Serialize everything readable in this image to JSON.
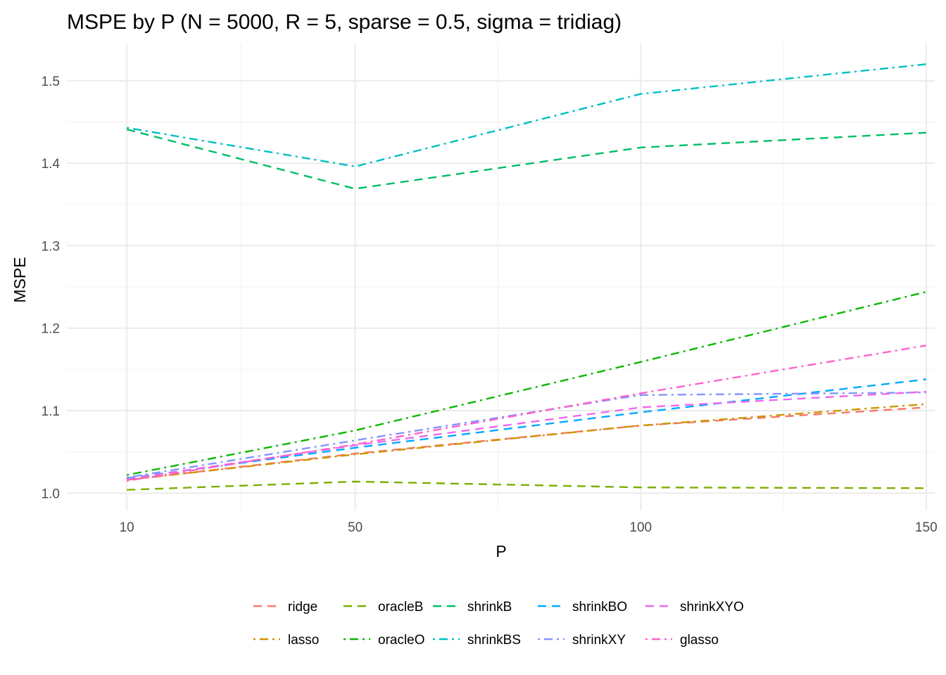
{
  "chart_data": {
    "type": "line",
    "title": "MSPE by P (N = 5000, R = 5, sparse = 0.5, sigma = tridiag)",
    "xlabel": "P",
    "ylabel": "MSPE",
    "x": [
      10,
      50,
      100,
      150
    ],
    "x_ticks": [
      10,
      50,
      100,
      150
    ],
    "x_tick_labels": [
      "10",
      "50",
      "100",
      "150"
    ],
    "xlim": [
      -0.5,
      151.5
    ],
    "y_ticks": [
      1.0,
      1.1,
      1.2,
      1.3,
      1.4,
      1.5
    ],
    "y_tick_labels": [
      "1.0",
      "1.1",
      "1.2",
      "1.3",
      "1.4",
      "1.5"
    ],
    "ylim": [
      0.979,
      1.545
    ],
    "grid": true,
    "legend_position": "bottom",
    "series": [
      {
        "name": "ridge",
        "color": "#F8766D",
        "dash": "dashed",
        "values": [
          1.016,
          1.048,
          1.082,
          1.104
        ]
      },
      {
        "name": "lasso",
        "color": "#CD9600",
        "dash": "dotdash",
        "values": [
          1.016,
          1.047,
          1.082,
          1.108
        ]
      },
      {
        "name": "oracleB",
        "color": "#7CAE00",
        "dash": "dashed",
        "values": [
          1.004,
          1.014,
          1.007,
          1.006
        ]
      },
      {
        "name": "oracleO",
        "color": "#0CB702",
        "dash": "dotdash",
        "values": [
          1.022,
          1.076,
          1.159,
          1.244
        ]
      },
      {
        "name": "shrinkB",
        "color": "#00BE67",
        "dash": "dashed",
        "values": [
          1.441,
          1.369,
          1.419,
          1.437
        ]
      },
      {
        "name": "shrinkBS",
        "color": "#00BFC4",
        "dash": "dotdash",
        "values": [
          1.443,
          1.396,
          1.484,
          1.52
        ]
      },
      {
        "name": "shrinkBO",
        "color": "#00A9FF",
        "dash": "dashed",
        "values": [
          1.018,
          1.055,
          1.098,
          1.138
        ]
      },
      {
        "name": "shrinkXY",
        "color": "#8494FF",
        "dash": "dotdash",
        "values": [
          1.019,
          1.064,
          1.119,
          1.122
        ]
      },
      {
        "name": "shrinkXYO",
        "color": "#ED68ED",
        "dash": "dashed",
        "values": [
          1.017,
          1.058,
          1.104,
          1.123
        ]
      },
      {
        "name": "glasso",
        "color": "#FF61CC",
        "dash": "dotdash",
        "values": [
          1.015,
          1.059,
          1.121,
          1.179
        ]
      }
    ]
  }
}
